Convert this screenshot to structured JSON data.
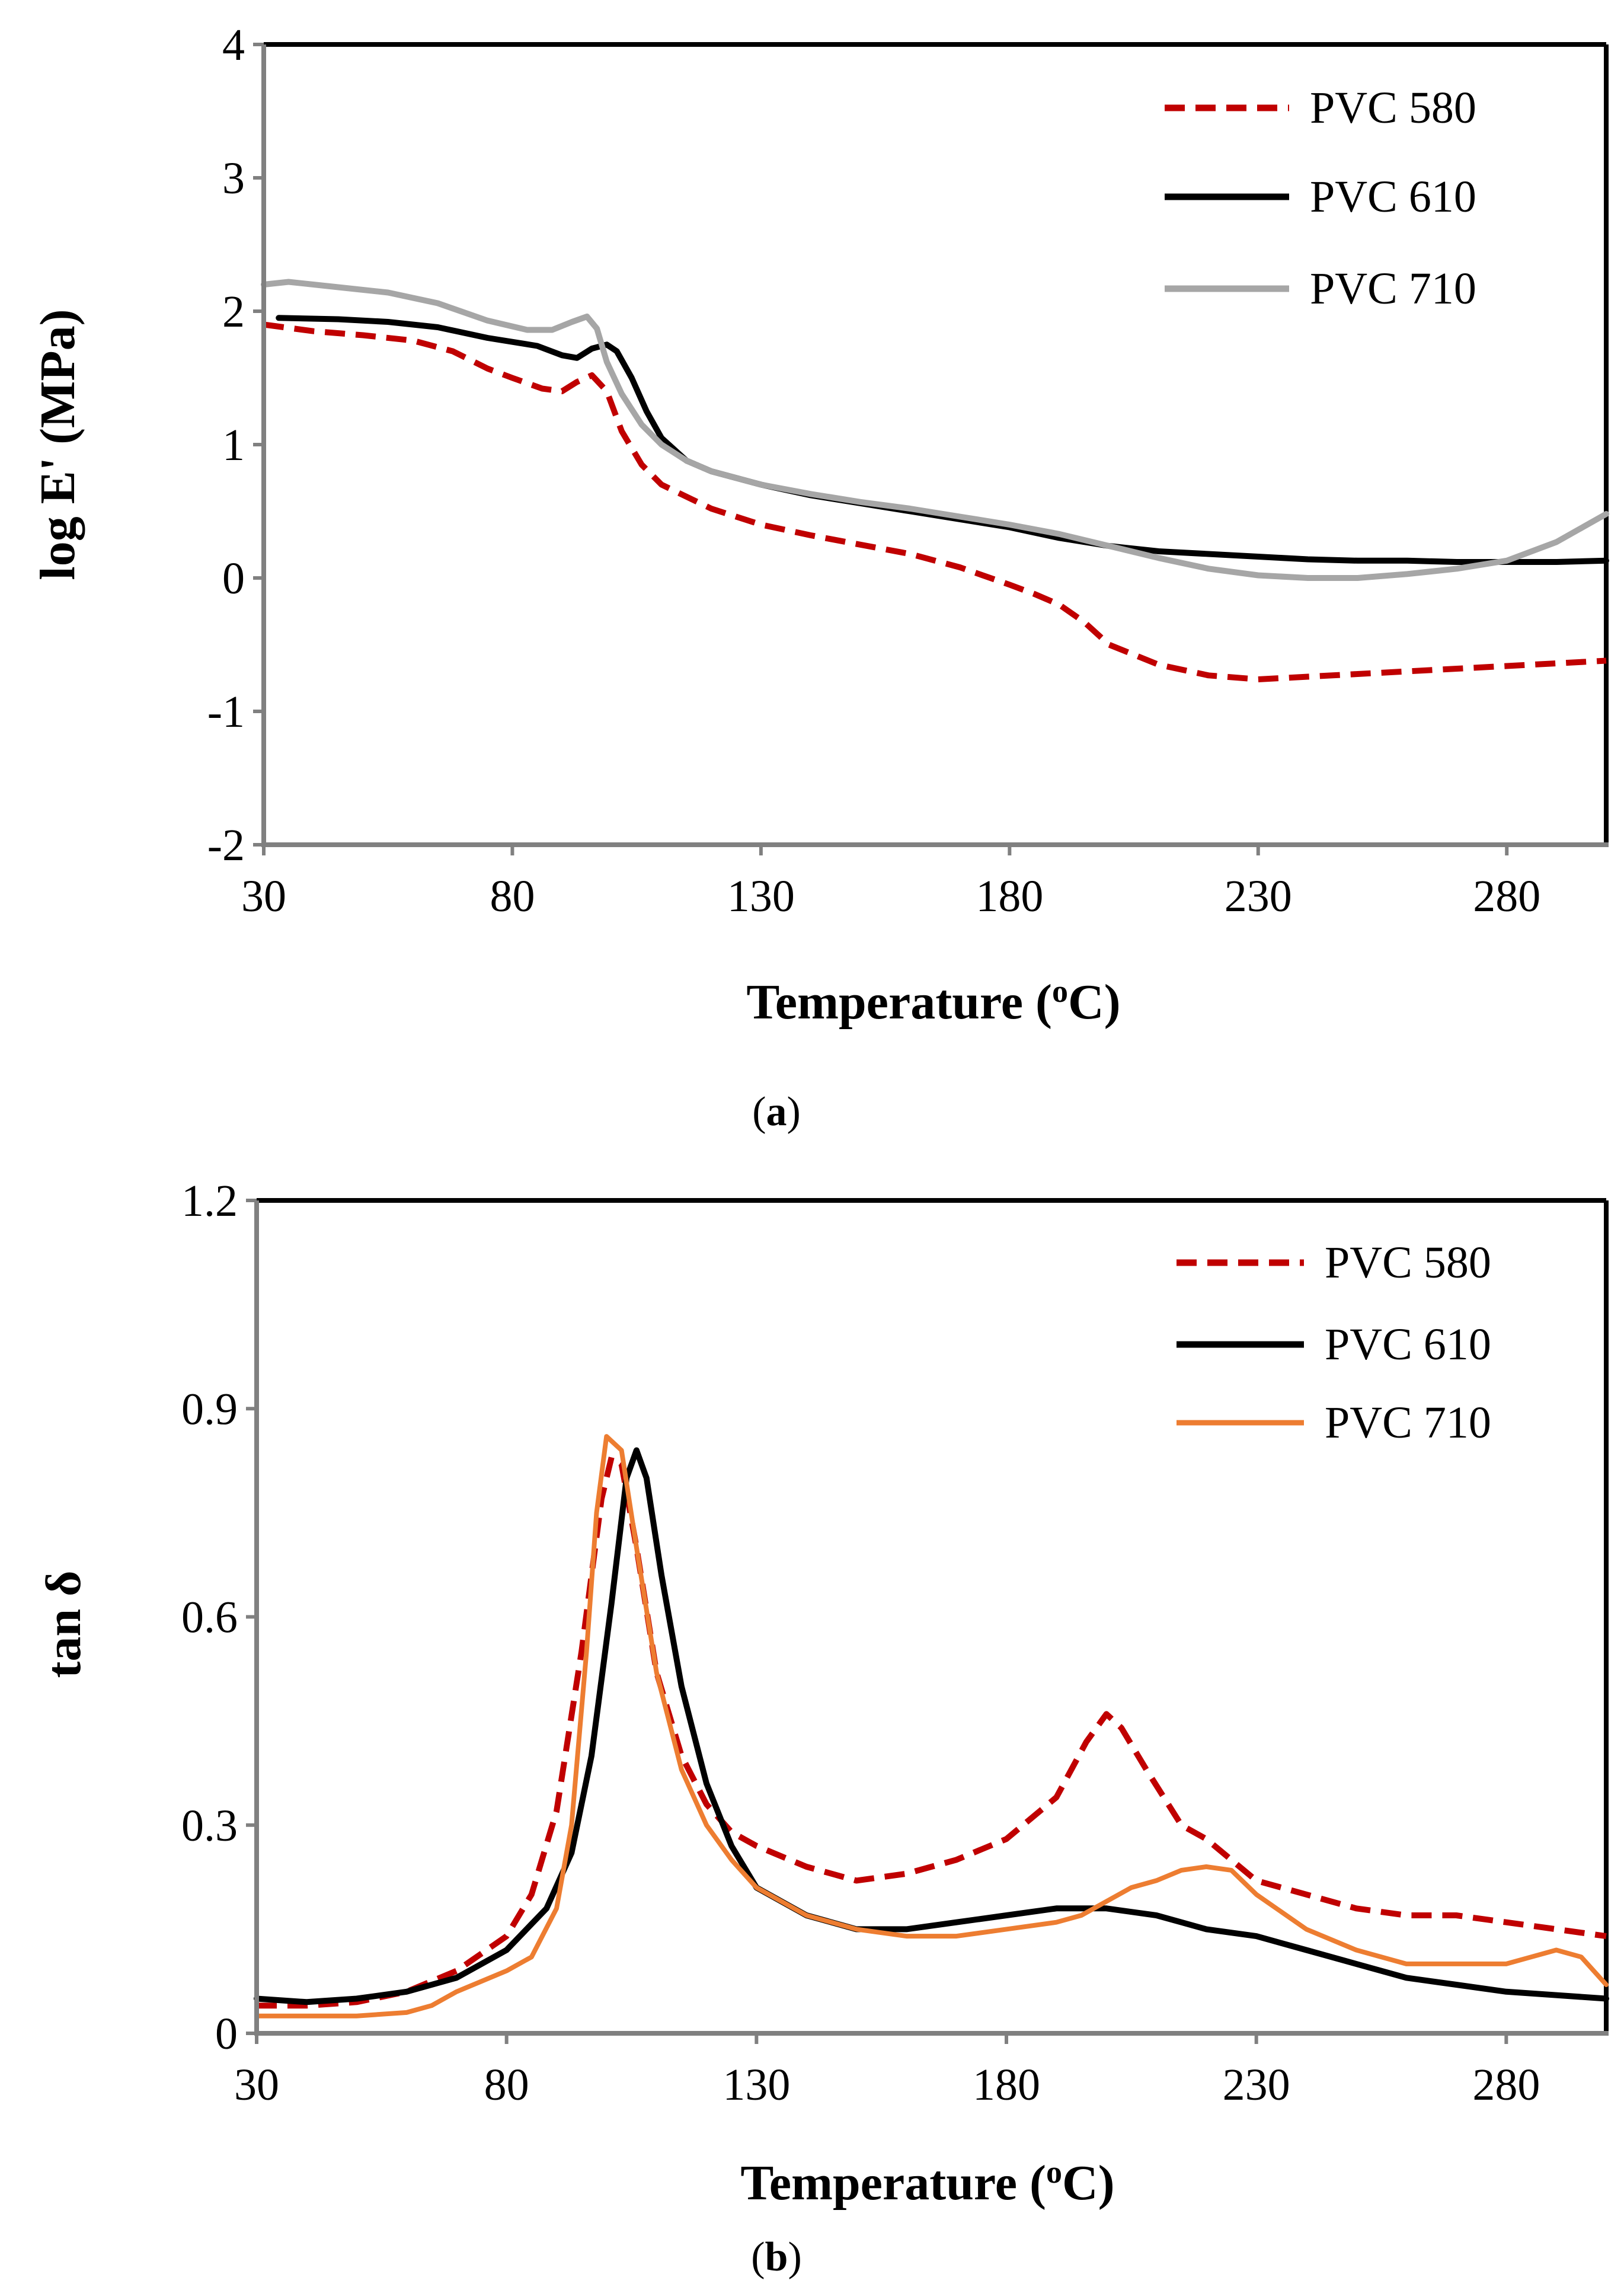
{
  "figure": {
    "caption_a_open": "(",
    "caption_a_letter": "a",
    "caption_a_close": ")",
    "caption_b_open": "(",
    "caption_b_letter": "b",
    "caption_b_close": ")"
  },
  "colors": {
    "pvc580": "#c00000",
    "pvc610": "#000000",
    "pvc710_a": "#a6a6a6",
    "pvc710_b": "#ed7d31",
    "axis": "#808080",
    "frame": "#000000"
  },
  "chart_data": [
    {
      "type": "line",
      "panel": "a",
      "xlabel": "Temperature",
      "xlabel_unit_open": " (",
      "xlabel_unit_sup": "o",
      "xlabel_unit_rest": "C)",
      "ylabel": "log E' (MPa)",
      "xlim": [
        30,
        300
      ],
      "ylim": [
        -2,
        4
      ],
      "xticks": [
        30,
        80,
        130,
        180,
        230,
        280
      ],
      "yticks": [
        -2,
        -1,
        0,
        1,
        2,
        3,
        4
      ],
      "legend_position": "top-right",
      "series": [
        {
          "name": "PVC 580",
          "style": "dashed",
          "x": [
            30,
            40,
            50,
            60,
            68,
            75,
            80,
            86,
            90,
            93,
            96,
            99,
            102,
            106,
            110,
            120,
            130,
            140,
            150,
            160,
            170,
            180,
            185,
            190,
            195,
            200,
            210,
            220,
            230,
            240,
            250,
            260,
            270,
            280,
            290,
            300
          ],
          "y": [
            1.9,
            1.85,
            1.82,
            1.78,
            1.7,
            1.57,
            1.5,
            1.42,
            1.4,
            1.47,
            1.52,
            1.4,
            1.1,
            0.85,
            0.7,
            0.52,
            0.4,
            0.32,
            0.25,
            0.18,
            0.08,
            -0.05,
            -0.12,
            -0.2,
            -0.33,
            -0.5,
            -0.65,
            -0.73,
            -0.76,
            -0.74,
            -0.72,
            -0.7,
            -0.68,
            -0.66,
            -0.64,
            -0.62
          ]
        },
        {
          "name": "PVC 610",
          "style": "solid",
          "x": [
            33,
            45,
            55,
            65,
            75,
            85,
            90,
            93,
            96,
            99,
            101,
            104,
            107,
            110,
            115,
            120,
            130,
            140,
            150,
            160,
            170,
            180,
            190,
            200,
            210,
            220,
            230,
            240,
            250,
            260,
            270,
            280,
            290,
            300
          ],
          "y": [
            1.95,
            1.94,
            1.92,
            1.88,
            1.8,
            1.74,
            1.67,
            1.65,
            1.72,
            1.75,
            1.7,
            1.5,
            1.25,
            1.05,
            0.88,
            0.8,
            0.7,
            0.62,
            0.56,
            0.5,
            0.44,
            0.38,
            0.3,
            0.24,
            0.2,
            0.18,
            0.16,
            0.14,
            0.13,
            0.13,
            0.12,
            0.12,
            0.12,
            0.13
          ]
        },
        {
          "name": "PVC 710",
          "style": "solid",
          "x": [
            30,
            35,
            45,
            55,
            65,
            75,
            83,
            88,
            92,
            95,
            97,
            99,
            102,
            106,
            110,
            115,
            120,
            130,
            140,
            150,
            160,
            170,
            180,
            190,
            200,
            210,
            220,
            230,
            240,
            250,
            260,
            270,
            280,
            290,
            300
          ],
          "y": [
            2.2,
            2.22,
            2.18,
            2.14,
            2.06,
            1.93,
            1.86,
            1.86,
            1.92,
            1.96,
            1.87,
            1.62,
            1.38,
            1.15,
            1.0,
            0.88,
            0.8,
            0.7,
            0.63,
            0.57,
            0.52,
            0.46,
            0.4,
            0.33,
            0.24,
            0.15,
            0.07,
            0.02,
            0.0,
            0.0,
            0.03,
            0.07,
            0.13,
            0.27,
            0.48
          ]
        }
      ]
    },
    {
      "type": "line",
      "panel": "b",
      "xlabel": "Temperature",
      "xlabel_unit_open": " (",
      "xlabel_unit_sup": "o",
      "xlabel_unit_rest": "C)",
      "ylabel": "tan δ",
      "xlim": [
        30,
        300
      ],
      "ylim": [
        0,
        1.2
      ],
      "xticks": [
        30,
        80,
        130,
        180,
        230,
        280
      ],
      "yticks": [
        0,
        0.3,
        0.6,
        0.9,
        1.2
      ],
      "legend_position": "top-right",
      "series": [
        {
          "name": "PVC 580",
          "style": "dashed",
          "x": [
            30,
            40,
            50,
            60,
            70,
            80,
            85,
            90,
            95,
            99,
            101,
            103,
            106,
            110,
            115,
            120,
            125,
            130,
            140,
            150,
            160,
            170,
            180,
            190,
            196,
            200,
            203,
            208,
            215,
            220,
            225,
            230,
            240,
            250,
            260,
            270,
            280,
            290,
            300
          ],
          "y": [
            0.04,
            0.04,
            0.045,
            0.06,
            0.09,
            0.14,
            0.2,
            0.32,
            0.55,
            0.77,
            0.83,
            0.82,
            0.7,
            0.52,
            0.4,
            0.33,
            0.29,
            0.27,
            0.24,
            0.22,
            0.23,
            0.25,
            0.28,
            0.34,
            0.42,
            0.46,
            0.44,
            0.38,
            0.3,
            0.28,
            0.25,
            0.22,
            0.2,
            0.18,
            0.17,
            0.17,
            0.16,
            0.15,
            0.14
          ]
        },
        {
          "name": "PVC 610",
          "style": "solid",
          "x": [
            30,
            40,
            50,
            60,
            70,
            80,
            88,
            93,
            97,
            101,
            104,
            106,
            108,
            111,
            115,
            120,
            125,
            130,
            140,
            150,
            160,
            170,
            180,
            190,
            200,
            210,
            215,
            220,
            230,
            240,
            250,
            260,
            270,
            280,
            290,
            300
          ],
          "y": [
            0.05,
            0.045,
            0.05,
            0.06,
            0.08,
            0.12,
            0.18,
            0.26,
            0.4,
            0.62,
            0.8,
            0.84,
            0.8,
            0.66,
            0.5,
            0.36,
            0.27,
            0.21,
            0.17,
            0.15,
            0.15,
            0.16,
            0.17,
            0.18,
            0.18,
            0.17,
            0.16,
            0.15,
            0.14,
            0.12,
            0.1,
            0.08,
            0.07,
            0.06,
            0.055,
            0.05
          ]
        },
        {
          "name": "PVC 710",
          "style": "solid",
          "x": [
            30,
            40,
            50,
            60,
            65,
            70,
            80,
            85,
            90,
            93,
            96,
            98,
            100,
            103,
            106,
            110,
            115,
            120,
            125,
            130,
            140,
            150,
            160,
            170,
            180,
            190,
            195,
            200,
            205,
            210,
            215,
            220,
            225,
            230,
            240,
            250,
            260,
            270,
            280,
            285,
            290,
            295,
            300
          ],
          "y": [
            0.025,
            0.025,
            0.025,
            0.03,
            0.04,
            0.06,
            0.09,
            0.11,
            0.18,
            0.3,
            0.55,
            0.75,
            0.86,
            0.84,
            0.7,
            0.52,
            0.38,
            0.3,
            0.25,
            0.21,
            0.17,
            0.15,
            0.14,
            0.14,
            0.15,
            0.16,
            0.17,
            0.19,
            0.21,
            0.22,
            0.235,
            0.24,
            0.235,
            0.2,
            0.15,
            0.12,
            0.1,
            0.1,
            0.1,
            0.11,
            0.12,
            0.11,
            0.07
          ]
        }
      ]
    }
  ]
}
